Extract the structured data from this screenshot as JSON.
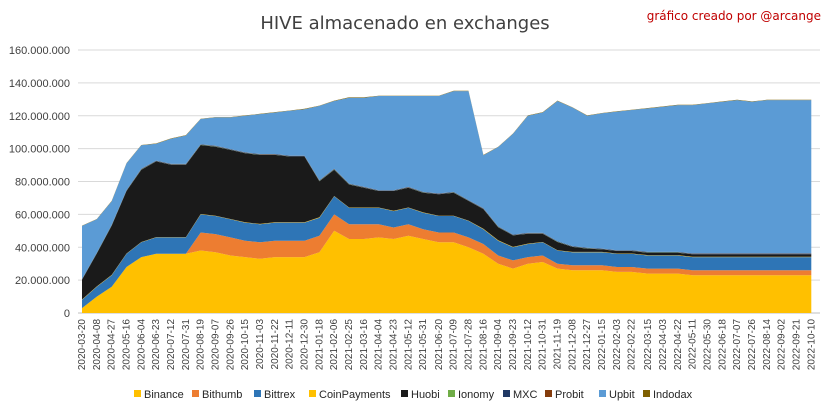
{
  "chart_data": {
    "type": "area",
    "stacked": true,
    "title": "HIVE almacenado en exchanges",
    "credit": "gráfico creado por @arcange",
    "xlabel": "",
    "ylabel": "",
    "ylim": [
      0,
      160000000
    ],
    "grid": true,
    "legend_position": "bottom",
    "y_ticks": [
      "0",
      "20.000.000",
      "40.000.000",
      "60.000.000",
      "80.000.000",
      "100.000.000",
      "120.000.000",
      "140.000.000",
      "160.000.000"
    ],
    "x_ticks": [
      "2020-03-20",
      "2020-04-08",
      "2020-04-27",
      "2020-05-16",
      "2020-06-04",
      "2020-06-23",
      "2020-07-12",
      "2020-07-31",
      "2020-08-19",
      "2020-09-07",
      "2020-09-26",
      "2020-10-15",
      "2020-11-03",
      "2020-11-22",
      "2020-12-11",
      "2020-12-30",
      "2021-01-18",
      "2021-02-06",
      "2021-02-25",
      "2021-03-16",
      "2021-04-04",
      "2021-04-23",
      "2021-05-12",
      "2021-05-31",
      "2021-06-20",
      "2021-07-09",
      "2021-07-28",
      "2021-08-16",
      "2021-09-04",
      "2021-09-23",
      "2021-10-12",
      "2021-10-31",
      "2021-11-19",
      "2021-12-08",
      "2021-12-27",
      "2022-01-15",
      "2022-02-03",
      "2022-02-22",
      "2022-03-15",
      "2022-04-03",
      "2022-04-22",
      "2022-05-11",
      "2022-05-30",
      "2022-06-18",
      "2022-07-07",
      "2022-07-26",
      "2022-08-14",
      "2022-09-02",
      "2022-09-21",
      "2022-10-10"
    ],
    "x": [
      "2020-03-20",
      "2020-04-08",
      "2020-04-27",
      "2020-05-16",
      "2020-06-04",
      "2020-06-23",
      "2020-07-12",
      "2020-07-31",
      "2020-08-19",
      "2020-09-07",
      "2020-09-26",
      "2020-10-15",
      "2020-11-03",
      "2020-11-22",
      "2020-12-11",
      "2020-12-30",
      "2021-01-18",
      "2021-02-06",
      "2021-02-25",
      "2021-03-16",
      "2021-04-04",
      "2021-04-23",
      "2021-05-12",
      "2021-05-31",
      "2021-06-20",
      "2021-07-09",
      "2021-07-28",
      "2021-08-16",
      "2021-09-04",
      "2021-09-23",
      "2021-10-12",
      "2021-10-31",
      "2021-11-19",
      "2021-12-08",
      "2021-12-27",
      "2022-01-15",
      "2022-02-03",
      "2022-02-22",
      "2022-03-15",
      "2022-04-03",
      "2022-04-22",
      "2022-05-11",
      "2022-05-30",
      "2022-06-18",
      "2022-07-07",
      "2022-07-26",
      "2022-08-14",
      "2022-09-02",
      "2022-09-21",
      "2022-10-10"
    ],
    "series": [
      {
        "name": "Binance",
        "color": "#ffc000",
        "values": [
          3000000,
          10000000,
          16000000,
          28000000,
          34000000,
          36000000,
          36000000,
          36000000,
          38000000,
          37000000,
          35000000,
          34000000,
          33000000,
          34000000,
          34000000,
          34000000,
          37000000,
          50000000,
          45000000,
          45000000,
          46000000,
          45000000,
          47000000,
          45000000,
          43000000,
          43000000,
          40000000,
          36000000,
          30000000,
          27000000,
          30000000,
          31000000,
          27000000,
          26000000,
          26000000,
          26000000,
          25000000,
          25000000,
          24000000,
          24000000,
          24000000,
          23000000,
          23000000,
          23000000,
          23000000,
          23000000,
          23000000,
          23000000,
          23000000,
          23000000
        ]
      },
      {
        "name": "Bithumb",
        "color": "#ed7d31",
        "values": [
          0,
          0,
          0,
          0,
          0,
          0,
          0,
          0,
          11000000,
          11000000,
          11000000,
          10000000,
          10000000,
          10000000,
          10000000,
          10000000,
          10000000,
          10000000,
          9000000,
          9000000,
          8000000,
          7000000,
          7000000,
          6000000,
          6000000,
          6000000,
          6000000,
          6000000,
          5000000,
          5000000,
          4000000,
          4000000,
          3000000,
          3000000,
          3000000,
          3000000,
          3000000,
          3000000,
          3000000,
          3000000,
          3000000,
          3000000,
          3000000,
          3000000,
          3000000,
          3000000,
          3000000,
          3000000,
          3000000,
          3000000
        ]
      },
      {
        "name": "Bittrex",
        "color": "#2e75b6",
        "values": [
          5000000,
          6000000,
          7000000,
          8000000,
          9000000,
          10000000,
          10000000,
          10000000,
          11000000,
          11000000,
          11000000,
          11000000,
          11000000,
          11000000,
          11000000,
          11000000,
          11000000,
          11000000,
          10000000,
          10000000,
          10000000,
          10000000,
          10000000,
          10000000,
          10000000,
          10000000,
          10000000,
          9000000,
          9000000,
          8000000,
          8000000,
          8000000,
          8000000,
          8000000,
          8000000,
          8000000,
          8000000,
          8000000,
          8000000,
          8000000,
          8000000,
          8000000,
          8000000,
          8000000,
          8000000,
          8000000,
          8000000,
          8000000,
          8000000,
          8000000
        ]
      },
      {
        "name": "CoinPayments",
        "color": "#ffc000",
        "values": [
          200000,
          200000,
          200000,
          200000,
          200000,
          200000,
          200000,
          200000,
          200000,
          200000,
          200000,
          200000,
          200000,
          200000,
          200000,
          200000,
          200000,
          200000,
          200000,
          200000,
          200000,
          200000,
          200000,
          200000,
          200000,
          200000,
          200000,
          200000,
          200000,
          200000,
          200000,
          200000,
          200000,
          200000,
          200000,
          200000,
          200000,
          200000,
          200000,
          200000,
          200000,
          200000,
          200000,
          200000,
          200000,
          200000,
          200000,
          200000,
          200000,
          200000
        ]
      },
      {
        "name": "Huobi",
        "color": "#1a1a1a",
        "values": [
          12000000,
          20000000,
          30000000,
          38000000,
          44000000,
          46000000,
          44000000,
          44000000,
          42000000,
          42000000,
          42000000,
          42000000,
          42000000,
          41000000,
          40000000,
          40000000,
          22000000,
          16000000,
          14000000,
          12000000,
          10000000,
          12000000,
          12000000,
          12000000,
          13000000,
          14000000,
          12000000,
          12000000,
          8000000,
          7000000,
          6000000,
          5000000,
          5000000,
          3000000,
          2000000,
          1500000,
          1500000,
          1500000,
          1500000,
          1500000,
          1500000,
          1500000,
          1500000,
          1500000,
          1500000,
          1500000,
          1500000,
          1500000,
          1500000,
          1500000
        ]
      },
      {
        "name": "Ionomy",
        "color": "#70ad47",
        "values": [
          100000,
          100000,
          100000,
          100000,
          100000,
          100000,
          100000,
          100000,
          100000,
          100000,
          100000,
          100000,
          100000,
          100000,
          100000,
          100000,
          100000,
          100000,
          100000,
          100000,
          100000,
          100000,
          100000,
          100000,
          100000,
          100000,
          100000,
          100000,
          100000,
          100000,
          100000,
          100000,
          100000,
          100000,
          100000,
          100000,
          100000,
          100000,
          100000,
          100000,
          100000,
          100000,
          100000,
          100000,
          100000,
          100000,
          100000,
          100000,
          100000,
          100000
        ]
      },
      {
        "name": "MXC",
        "color": "#203864",
        "values": [
          300000,
          300000,
          300000,
          300000,
          300000,
          300000,
          300000,
          300000,
          300000,
          300000,
          300000,
          300000,
          300000,
          300000,
          300000,
          300000,
          300000,
          300000,
          300000,
          300000,
          300000,
          300000,
          300000,
          300000,
          300000,
          300000,
          300000,
          300000,
          300000,
          300000,
          300000,
          300000,
          300000,
          300000,
          300000,
          300000,
          300000,
          300000,
          300000,
          300000,
          300000,
          300000,
          300000,
          300000,
          300000,
          300000,
          300000,
          300000,
          300000,
          300000
        ]
      },
      {
        "name": "Probit",
        "color": "#843c0c",
        "values": [
          100000,
          100000,
          100000,
          100000,
          100000,
          100000,
          100000,
          100000,
          100000,
          100000,
          100000,
          100000,
          100000,
          100000,
          100000,
          100000,
          100000,
          100000,
          100000,
          100000,
          100000,
          100000,
          100000,
          100000,
          100000,
          100000,
          100000,
          100000,
          100000,
          100000,
          100000,
          100000,
          100000,
          100000,
          100000,
          100000,
          100000,
          100000,
          100000,
          100000,
          100000,
          100000,
          100000,
          100000,
          100000,
          100000,
          100000,
          100000,
          100000,
          100000
        ]
      },
      {
        "name": "Upbit",
        "color": "#5b9bd5",
        "values": [
          32300000,
          20300000,
          14300000,
          16300000,
          14300000,
          10300000,
          15300000,
          17300000,
          15300000,
          17300000,
          19300000,
          22300000,
          24300000,
          25300000,
          27300000,
          28300000,
          45300000,
          41300000,
          52300000,
          54300000,
          57300000,
          57300000,
          55300000,
          58300000,
          59300000,
          61300000,
          66300000,
          32300000,
          48300000,
          61300000,
          71300000,
          73300000,
          85300000,
          84300000,
          80300000,
          82300000,
          84300000,
          85300000,
          87300000,
          88300000,
          89300000,
          90300000,
          91300000,
          92300000,
          93300000,
          92300000,
          93300000,
          93300000,
          93300000,
          93300000
        ]
      },
      {
        "name": "Indodax",
        "color": "#7f6000",
        "values": [
          200000,
          200000,
          200000,
          200000,
          200000,
          200000,
          200000,
          200000,
          200000,
          200000,
          200000,
          200000,
          200000,
          200000,
          200000,
          200000,
          200000,
          200000,
          200000,
          200000,
          200000,
          200000,
          200000,
          200000,
          200000,
          200000,
          200000,
          200000,
          200000,
          200000,
          200000,
          200000,
          200000,
          200000,
          200000,
          200000,
          200000,
          200000,
          200000,
          200000,
          200000,
          200000,
          200000,
          200000,
          200000,
          200000,
          200000,
          200000,
          200000,
          200000
        ]
      }
    ]
  }
}
